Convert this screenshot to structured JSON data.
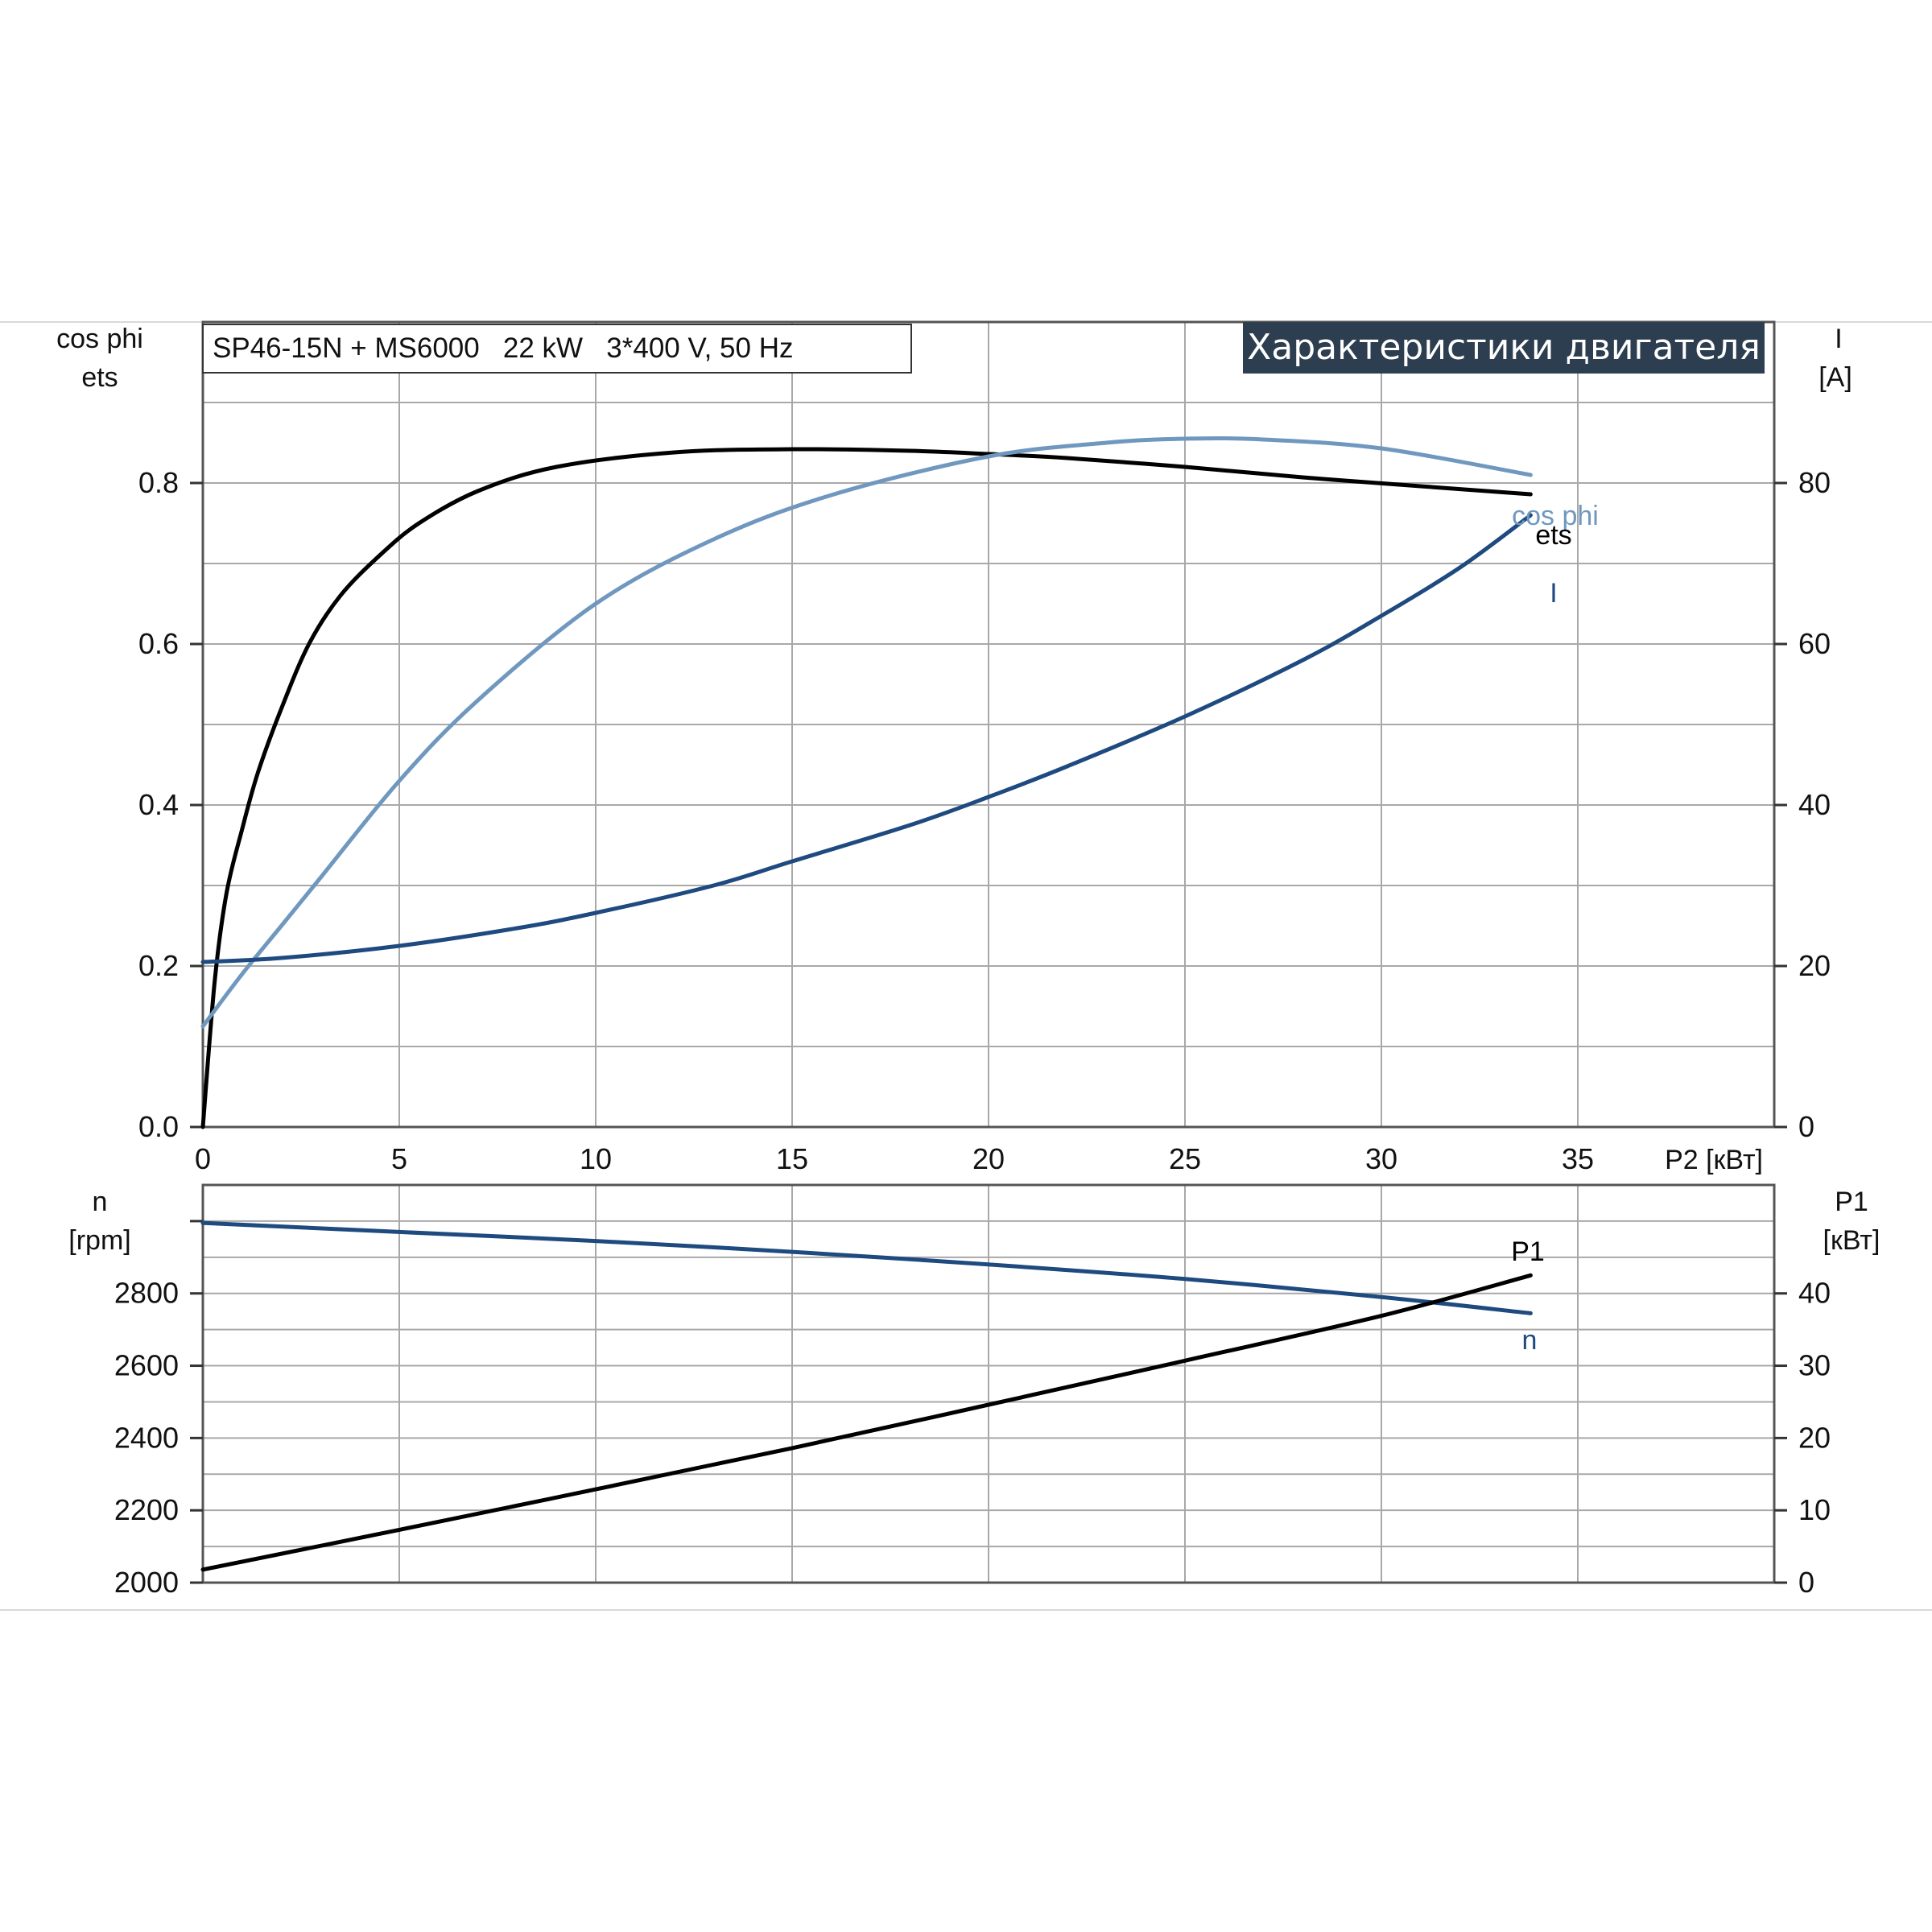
{
  "colors": {
    "ets": "#000000",
    "cos_phi": "#7098bf",
    "current": "#1e4a80",
    "speed": "#1e4a80",
    "p1": "#000000",
    "grid": "#a8a8a8",
    "banner_bg": "#2d3e50"
  },
  "header": {
    "title": "SP46-15N + MS6000   22 kW   3*400 V, 50 Hz",
    "banner": "Характеристики двигателя"
  },
  "axis_labels": {
    "top_left_1": "cos phi",
    "top_left_2": "ets",
    "top_right_1": "I",
    "top_right_2": "[A]",
    "x": "P2 [кВт]",
    "bottom_left_1": "n",
    "bottom_left_2": "[rpm]",
    "bottom_right_1": "P1",
    "bottom_right_2": "[кВт]"
  },
  "curve_labels": {
    "cos_phi": "cos phi",
    "ets": "ets",
    "current": "I",
    "p1": "P1",
    "speed": "n"
  },
  "chart_data": [
    {
      "type": "line",
      "xlabel": "P2 [кВт]",
      "ylabel": "cos phi / ets",
      "y2label": "I [A]",
      "xlim": [
        0,
        40
      ],
      "xticks": [
        0,
        5,
        10,
        15,
        20,
        25,
        30,
        35
      ],
      "ylim": [
        0,
        1.0
      ],
      "yticks": [
        "0.0",
        "0.2",
        "0.4",
        "0.6",
        "0.8"
      ],
      "y2lim": [
        0,
        100
      ],
      "y2ticks": [
        "0",
        "20",
        "40",
        "60",
        "80"
      ],
      "grid": true,
      "series": [
        {
          "name": "ets",
          "axis": "left",
          "x": [
            0,
            0.3,
            0.6,
            1.0,
            1.4,
            2.0,
            2.7,
            3.5,
            4.5,
            5.5,
            7.0,
            9.0,
            12.0,
            15.0,
            18.0,
            20.0,
            22.0,
            25.0,
            28.0,
            31.0,
            33.8
          ],
          "y": [
            0.0,
            0.18,
            0.29,
            0.37,
            0.44,
            0.52,
            0.6,
            0.66,
            0.71,
            0.75,
            0.79,
            0.82,
            0.838,
            0.842,
            0.84,
            0.836,
            0.831,
            0.82,
            0.807,
            0.796,
            0.786
          ]
        },
        {
          "name": "cos phi",
          "axis": "left",
          "x": [
            0,
            1,
            2,
            3,
            5,
            7,
            10,
            13,
            16,
            20,
            23,
            25,
            27,
            30,
            33.8
          ],
          "y": [
            0.125,
            0.19,
            0.25,
            0.31,
            0.43,
            0.53,
            0.65,
            0.73,
            0.785,
            0.833,
            0.85,
            0.855,
            0.854,
            0.843,
            0.81
          ]
        },
        {
          "name": "I",
          "axis": "right",
          "x": [
            0,
            2,
            5,
            8,
            10,
            13,
            15,
            18,
            20,
            22,
            25,
            28,
            30,
            32,
            33.8
          ],
          "y": [
            20.5,
            21,
            22.5,
            24.7,
            26.6,
            30,
            33,
            37.5,
            41,
            44.8,
            51,
            58,
            63.5,
            69.5,
            76
          ]
        }
      ]
    },
    {
      "type": "line",
      "xlabel": "P2 [кВт]",
      "ylabel": "n [rpm]",
      "y2label": "P1 [кВт]",
      "xlim": [
        0,
        40
      ],
      "ylim": [
        2000,
        3100
      ],
      "yticks": [
        "2000",
        "2200",
        "2400",
        "2600",
        "2800"
      ],
      "y2lim": [
        0,
        55
      ],
      "y2ticks": [
        "0",
        "10",
        "20",
        "30",
        "40"
      ],
      "grid": true,
      "series": [
        {
          "name": "n",
          "axis": "left",
          "x": [
            0,
            5,
            10,
            15,
            20,
            25,
            30,
            33.8
          ],
          "y": [
            2995,
            2970,
            2945,
            2915,
            2880,
            2840,
            2790,
            2745
          ]
        },
        {
          "name": "P1",
          "axis": "right",
          "x": [
            0,
            5,
            10,
            15,
            20,
            25,
            30,
            33.8
          ],
          "y": [
            1.8,
            7.3,
            12.9,
            18.6,
            24.6,
            30.7,
            36.9,
            42.5
          ]
        }
      ]
    }
  ]
}
